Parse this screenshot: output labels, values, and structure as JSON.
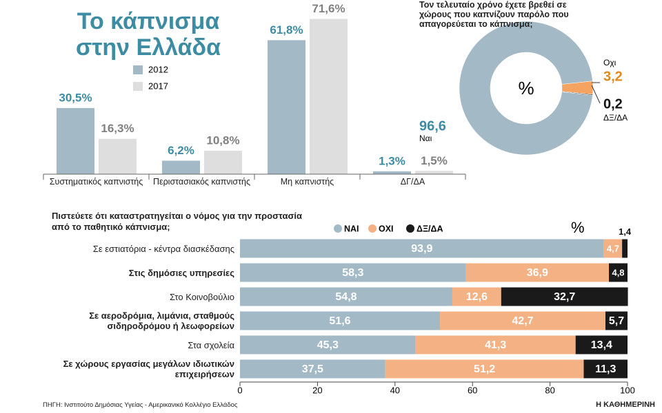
{
  "chart_data": [
    {
      "type": "bar",
      "title": "Το κάπνισμα στην Ελλάδα",
      "categories": [
        "Συστηματικός καπνιστής",
        "Περιστασιακός καπνιστής",
        "Μη καπνιστής",
        "ΔΓ/ΔΑ"
      ],
      "series": [
        {
          "name": "2012",
          "color": "#a3bac6",
          "values": [
            30.5,
            6.2,
            61.8,
            1.3
          ],
          "value_labels": [
            "30,5%",
            "6,2%",
            "61,8%",
            "1,3%"
          ]
        },
        {
          "name": "2017",
          "color": "#dedede",
          "values": [
            16.3,
            10.8,
            71.6,
            1.5
          ],
          "value_labels": [
            "16,3%",
            "10,8%",
            "71,6%",
            "1,5%"
          ]
        }
      ]
    },
    {
      "type": "donut",
      "title": "Τον τελευταίο χρόνο έχετε βρεθεί σε χώρους που καπνίζουν παρόλο που απαγορεύεται το κάπνισμα;",
      "unit": "%",
      "categories": [
        "Ναι",
        "Οχι",
        "ΔΞ/ΔΑ"
      ],
      "values": [
        96.6,
        3.2,
        0.2
      ],
      "value_labels": [
        "96,6",
        "3,2",
        "0,2"
      ],
      "colors": [
        "#a3bac6",
        "#f4a460",
        "#1a1a1a"
      ]
    },
    {
      "type": "stacked-hbar",
      "title": "Πιστεύετε ότι καταστρατηγείται ο νόμος για την προστασία από το παθητικό κάπνισμα;",
      "unit": "%",
      "categories": [
        "Σε εστιατόρια - κέντρα διασκέδασης",
        "Στις δημόσιες υπηρεσίες",
        "Στο Κοινοβούλιο",
        "Σε αεροδρόμια, λιμάνια, σταθμούς σιδηροδρόμου ή λεωφορείων",
        "Στα σχολεία",
        "Σε χώρους εργασίας μεγάλων ιδιωτικών επιχειρήσεων"
      ],
      "series": [
        {
          "name": "ΝΑΙ",
          "color": "#a3bac6",
          "values": [
            93.9,
            58.3,
            54.8,
            51.6,
            45.3,
            37.5
          ],
          "value_labels": [
            "93,9",
            "58,3",
            "54,8",
            "51,6",
            "45,3",
            "37,5"
          ]
        },
        {
          "name": "ΟΧΙ",
          "color": "#f4b183",
          "values": [
            4.7,
            36.9,
            12.6,
            42.7,
            41.3,
            51.2
          ],
          "value_labels": [
            "4,7",
            "36,9",
            "12,6",
            "42,7",
            "41,3",
            "51,2"
          ]
        },
        {
          "name": "ΔΞ/ΔΑ",
          "color": "#1a1a1a",
          "values": [
            1.4,
            4.8,
            32.7,
            5.7,
            13.4,
            11.3
          ],
          "value_labels": [
            "1,4",
            "4,8",
            "32,7",
            "5,7",
            "13,4",
            "11,3"
          ]
        }
      ],
      "xlim": [
        0,
        100
      ],
      "xticks": [
        0,
        20,
        40,
        60,
        80,
        100
      ]
    }
  ],
  "source": "ΠΗΓΗ: Ινστιτούτο Δημόσιας Υγείας - Αμερικανικό Κολλέγιο Ελλάδος",
  "credit": "Η ΚΑΘΗΜΕΡΙΝΗ"
}
